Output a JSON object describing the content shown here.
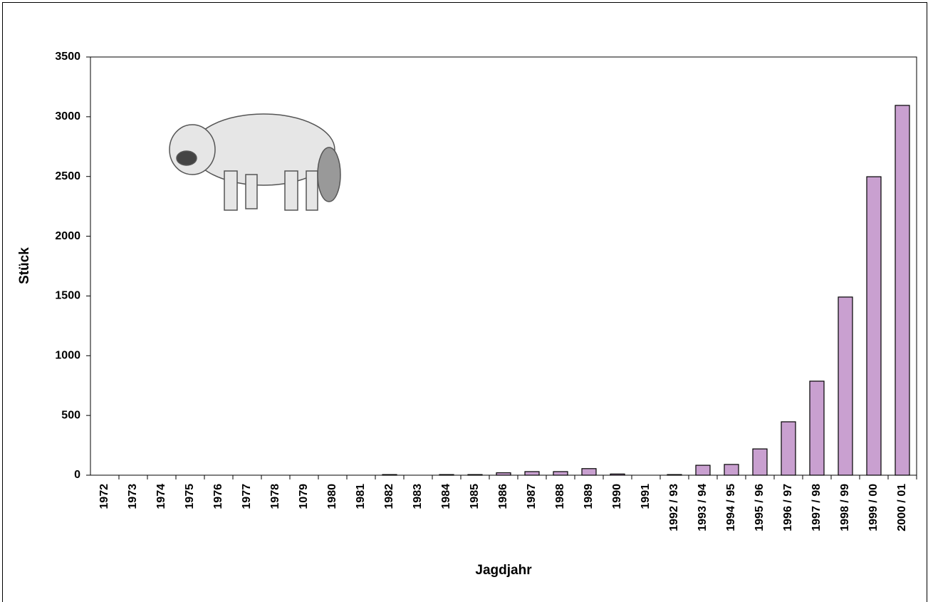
{
  "chart_data": {
    "type": "bar",
    "categories": [
      "1972",
      "1973",
      "1974",
      "1975",
      "1976",
      "1977",
      "1978",
      "1079",
      "1980",
      "1981",
      "1982",
      "1983",
      "1984",
      "1985",
      "1986",
      "1987",
      "1988",
      "1989",
      "1990",
      "1991",
      "1992 / 93",
      "1993 / 94",
      "1994 / 95",
      "1995 / 96",
      "1996 / 97",
      "1997 / 98",
      "1998 / 99",
      "1999 / 00",
      "2000 / 01"
    ],
    "values": [
      0,
      0,
      0,
      0,
      0,
      0,
      0,
      0,
      0,
      0,
      5,
      0,
      5,
      5,
      20,
      30,
      30,
      55,
      10,
      0,
      5,
      83,
      90,
      220,
      447,
      787,
      1491,
      2498,
      3095
    ],
    "color": "#c9a0d0",
    "x_label": "Jagdjahr",
    "y_label": "Stück",
    "ylim": [
      0,
      3500
    ],
    "yticks": [
      0,
      500,
      1000,
      1500,
      2000,
      2500,
      3000,
      3500
    ]
  }
}
